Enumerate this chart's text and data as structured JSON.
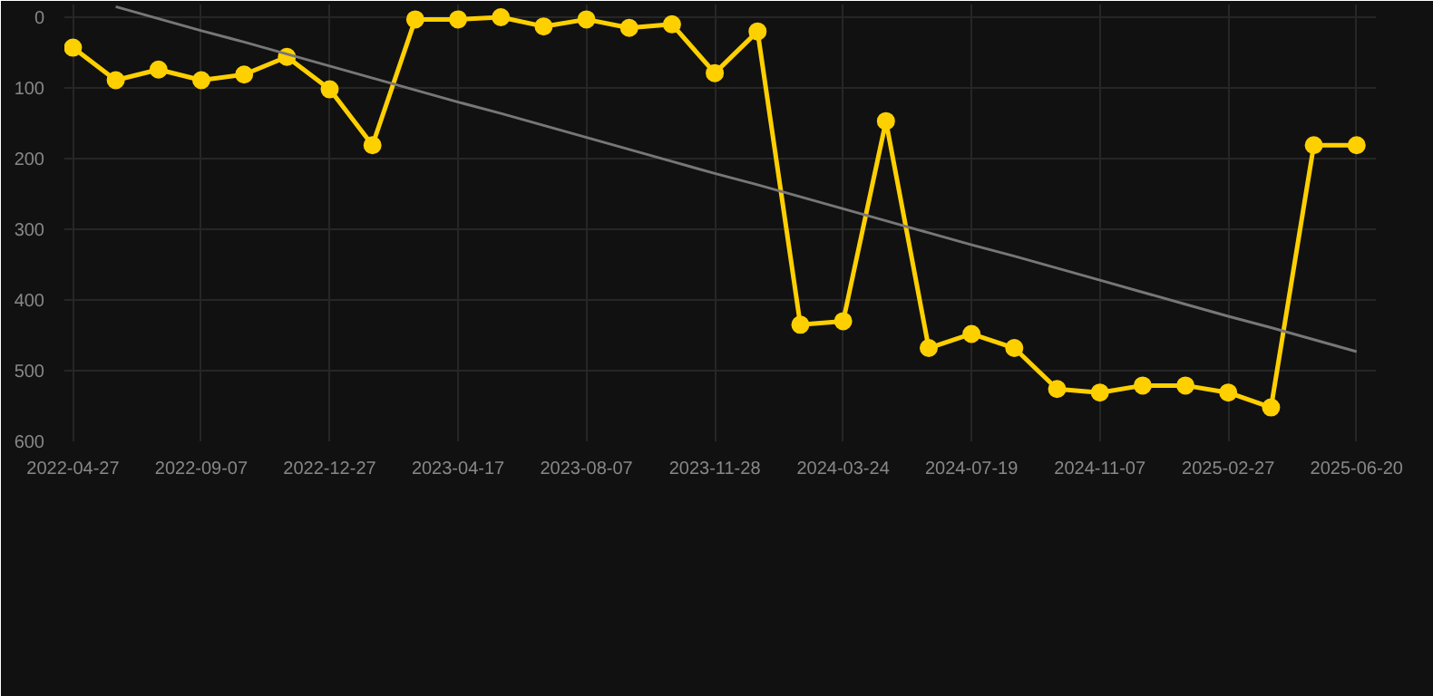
{
  "chart_data": {
    "type": "line",
    "categories": [
      "2022-04-27",
      null,
      null,
      "2022-09-07",
      null,
      null,
      "2022-12-27",
      null,
      null,
      "2023-04-17",
      null,
      null,
      "2023-08-07",
      null,
      null,
      "2023-11-28",
      null,
      null,
      "2024-03-24",
      null,
      null,
      "2024-07-19",
      null,
      null,
      "2024-11-07",
      null,
      null,
      "2025-02-27",
      null,
      null,
      "2025-06-20"
    ],
    "series": [
      {
        "color": "#ffd000",
        "values": [
          43,
          89,
          74,
          89,
          81,
          56,
          102,
          181,
          3,
          3,
          0,
          13,
          3,
          15,
          10,
          79,
          20,
          435,
          430,
          147,
          468,
          448,
          468,
          526,
          531,
          521,
          521,
          531,
          552,
          181,
          181
        ]
      },
      {
        "type": "line",
        "color": "#777777",
        "values": [
          null,
          -15,
          2,
          19,
          35,
          52,
          69,
          86,
          103,
          120,
          136,
          153,
          170,
          187,
          204,
          221,
          237,
          254,
          271,
          288,
          305,
          322,
          338,
          355,
          372,
          389,
          406,
          423,
          439,
          456,
          473
        ],
        "marker": "none"
      }
    ],
    "ylim": [
      600,
      -18
    ],
    "yticks": [
      0,
      100,
      200,
      300,
      400,
      500,
      600
    ],
    "grid": true,
    "marker": "circle",
    "line_style": "solid"
  }
}
